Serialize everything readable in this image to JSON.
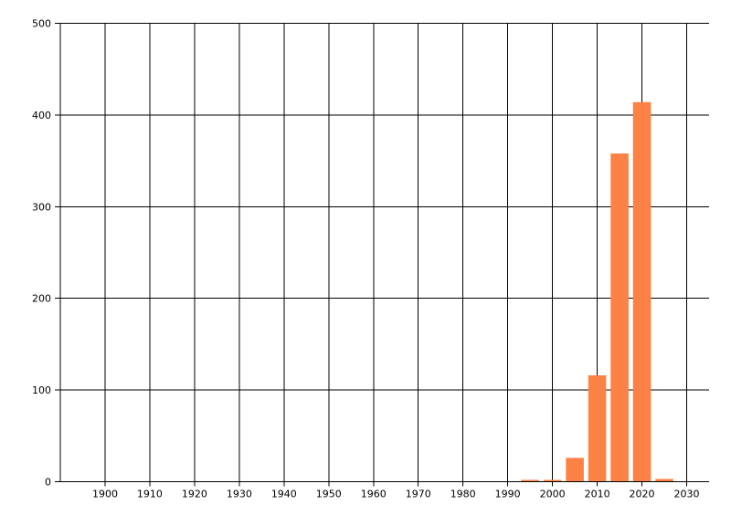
{
  "chart_data": {
    "type": "bar",
    "categories": [
      1995,
      2000,
      2005,
      2010,
      2015,
      2020,
      2025
    ],
    "values": [
      2,
      2,
      26,
      116,
      358,
      414,
      3
    ],
    "xlim": [
      1890,
      2035
    ],
    "ylim": [
      0,
      500
    ],
    "x_ticks": [
      1900,
      1910,
      1920,
      1930,
      1940,
      1950,
      1960,
      1970,
      1980,
      1990,
      2000,
      2010,
      2020,
      2030
    ],
    "x_gridline_step": 10,
    "y_ticks": [
      0,
      100,
      200,
      300,
      400,
      500
    ],
    "bar_width_years": 4,
    "grid": true,
    "legend": false,
    "colors": {
      "bar": "#FC8144",
      "grid": "#000000",
      "axis": "#000000",
      "text": "#000000",
      "background": "#FFFFFF"
    }
  }
}
